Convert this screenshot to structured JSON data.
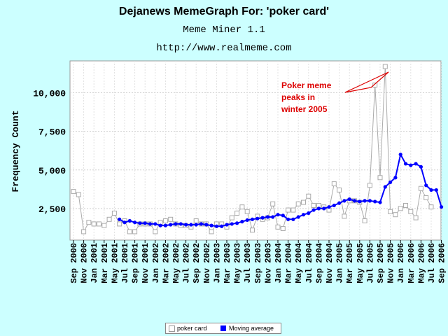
{
  "header": {
    "title": "Dejanews MemeGraph For: 'poker card'",
    "subtitle": "Meme Miner 1.1",
    "url": "http://www.realmeme.com"
  },
  "chart_data": {
    "type": "line",
    "ylabel": "Frequency Count",
    "ylim": [
      0,
      12500
    ],
    "yticks": [
      2500,
      5000,
      7500,
      10000
    ],
    "ytick_labels": [
      "2,500",
      "5,000",
      "7,500",
      "10,000"
    ],
    "xtick_labels": [
      "Sep 2000",
      "Nov 2000",
      "Jan 2001",
      "Mar 2001",
      "May 2001",
      "Jul 2001",
      "Sep 2001",
      "Nov 2001",
      "Jan 2002",
      "Mar 2002",
      "May 2002",
      "Jul 2002",
      "Sep 2002",
      "Nov 2002",
      "Jan 2003",
      "Mar 2003",
      "May 2003",
      "Jul 2003",
      "Sep 2003",
      "Nov 2003",
      "Jan 2004",
      "Mar 2004",
      "May 2004",
      "Jul 2004",
      "Sep 2004",
      "Nov 2004",
      "Jan 2005",
      "Mar 2005",
      "May 2005",
      "Jul 2005",
      "Sep 2005",
      "Nov 2005",
      "Jan 2006",
      "Mar 2006",
      "May 2006",
      "Jul 2006",
      "Sep 2006"
    ],
    "grid": true,
    "annotation": [
      "Poker meme",
      "peaks in",
      "winter 2005"
    ],
    "colors": {
      "raw": "#aaaaaa",
      "average": "#0000ff",
      "annotation": "#dd0000"
    },
    "series": [
      {
        "name": "poker card",
        "values": [
          3600,
          3400,
          1000,
          1600,
          1500,
          1500,
          1400,
          1800,
          2200,
          1500,
          1700,
          1000,
          1000,
          1500,
          1500,
          1500,
          1000,
          1600,
          1700,
          1800,
          1500,
          1400,
          1400,
          1300,
          1700,
          1500,
          1500,
          1000,
          1500,
          1500,
          1300,
          1900,
          2200,
          2600,
          2300,
          1100,
          2000,
          1800,
          1900,
          2800,
          1300,
          1200,
          2400,
          2400,
          2800,
          2900,
          3300,
          2700,
          2700,
          2600,
          2400,
          4100,
          3700,
          2000,
          3000,
          3000,
          2900,
          1700,
          4000,
          10500,
          4500,
          11700,
          2300,
          2100,
          2500,
          2700,
          2300,
          1900,
          3800,
          3200,
          2600
        ],
        "x_index": [
          0,
          1,
          2,
          3,
          4,
          5,
          6,
          7,
          8,
          9,
          10,
          11,
          12,
          13,
          14,
          15,
          16,
          17,
          18,
          19,
          20,
          21,
          22,
          23,
          24,
          25,
          26,
          27,
          28,
          29,
          30,
          31,
          32,
          33,
          34,
          35,
          36,
          37,
          38,
          39,
          40,
          41,
          42,
          43,
          44,
          45,
          46,
          47,
          48,
          49,
          50,
          51,
          52,
          53,
          54,
          55,
          56,
          57,
          58,
          59,
          60,
          61,
          62,
          63,
          64,
          65,
          66,
          67,
          68,
          69,
          70
        ]
      },
      {
        "name": "Moving average",
        "values": [
          1800,
          1600,
          1700,
          1600,
          1550,
          1550,
          1500,
          1500,
          1400,
          1400,
          1450,
          1500,
          1500,
          1450,
          1450,
          1450,
          1500,
          1450,
          1400,
          1350,
          1350,
          1450,
          1500,
          1550,
          1650,
          1750,
          1800,
          1850,
          1900,
          1950,
          1950,
          2100,
          2050,
          1800,
          1800,
          1950,
          2100,
          2200,
          2400,
          2500,
          2500,
          2600,
          2700,
          2850,
          3000,
          3100,
          3000,
          2950,
          3000,
          3000,
          2950,
          2900,
          3900,
          4200,
          4500,
          6000,
          5400,
          5300,
          5400,
          5200,
          4000,
          3700,
          3700,
          2600
        ],
        "x_index": [
          9,
          10,
          11,
          12,
          13,
          14,
          15,
          16,
          17,
          18,
          19,
          20,
          21,
          22,
          23,
          24,
          25,
          26,
          27,
          28,
          29,
          30,
          31,
          32,
          33,
          34,
          35,
          36,
          37,
          38,
          39,
          40,
          41,
          42,
          43,
          44,
          45,
          46,
          47,
          48,
          49,
          50,
          51,
          52,
          53,
          54,
          55,
          56,
          57,
          58,
          59,
          60,
          61,
          62,
          63,
          64,
          65,
          66,
          67,
          68,
          69,
          70,
          71,
          72
        ]
      }
    ]
  }
}
